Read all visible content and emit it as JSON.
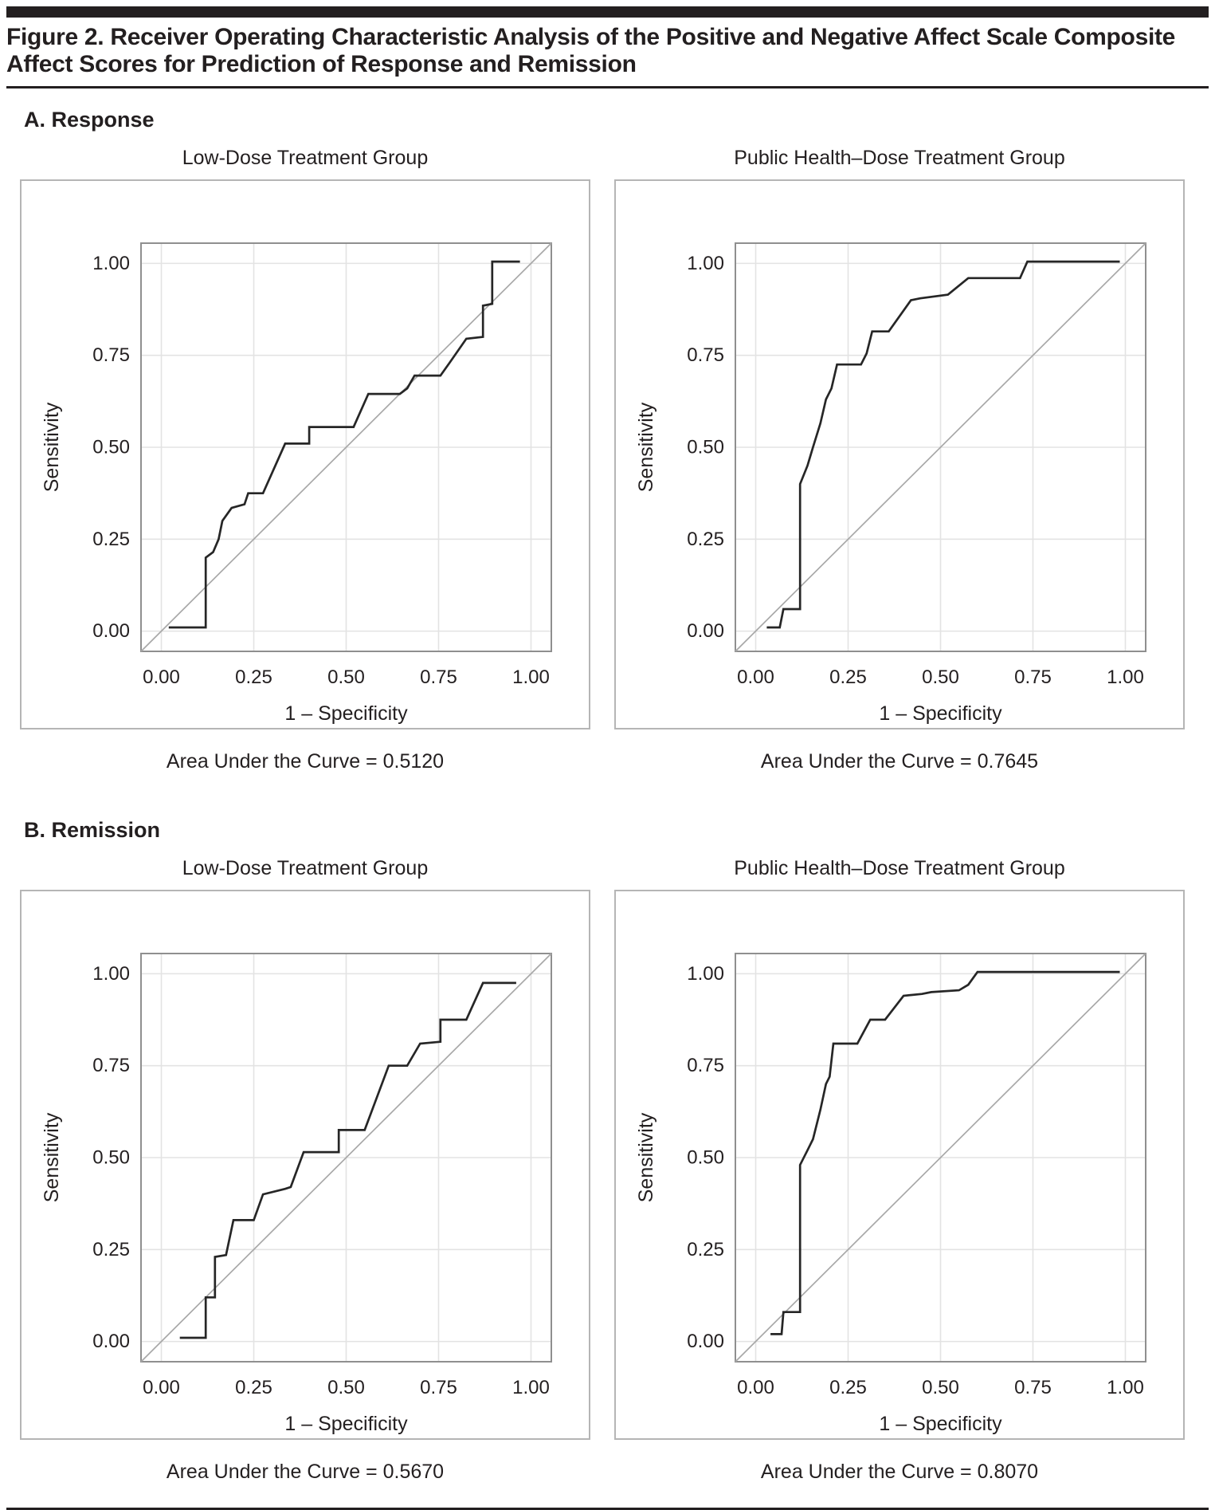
{
  "figure": {
    "title": "Figure 2. Receiver Operating Characteristic Analysis of the Positive and Negative Affect Scale Composite Affect Scores for Prediction of Response and Remission"
  },
  "sections": [
    {
      "label": "A. Response"
    },
    {
      "label": "B. Remission"
    }
  ],
  "colors": {
    "curve": "#262626",
    "diagonal": "#a8a8a8",
    "grid": "#e3e3e3",
    "plot_border": "#8f8f8f",
    "panel_border": "#b5b5b5",
    "text": "#231f20"
  },
  "chart_data": [
    {
      "type": "line",
      "section": "A. Response",
      "title": "Low-Dose Treatment Group",
      "xlabel": "1 – Specificity",
      "ylabel": "Sensitivity",
      "auc_caption": "Area Under the Curve = 0.5120",
      "auc_value": 0.512,
      "xlim": [
        0,
        1
      ],
      "ylim": [
        0,
        1
      ],
      "tick_values": [
        0,
        0.25,
        0.5,
        0.75,
        1
      ],
      "tick_labels": [
        "0.00",
        "0.25",
        "0.50",
        "0.75",
        "1.00"
      ],
      "grid": true,
      "diagonal_reference": true,
      "roc_points": [
        [
          0.02,
          0.01
        ],
        [
          0.12,
          0.01
        ],
        [
          0.12,
          0.2
        ],
        [
          0.14,
          0.215
        ],
        [
          0.155,
          0.25
        ],
        [
          0.165,
          0.3
        ],
        [
          0.19,
          0.335
        ],
        [
          0.225,
          0.345
        ],
        [
          0.235,
          0.375
        ],
        [
          0.275,
          0.375
        ],
        [
          0.335,
          0.51
        ],
        [
          0.4,
          0.51
        ],
        [
          0.4,
          0.555
        ],
        [
          0.52,
          0.555
        ],
        [
          0.56,
          0.645
        ],
        [
          0.645,
          0.645
        ],
        [
          0.665,
          0.66
        ],
        [
          0.685,
          0.695
        ],
        [
          0.755,
          0.695
        ],
        [
          0.78,
          0.73
        ],
        [
          0.825,
          0.795
        ],
        [
          0.87,
          0.8
        ],
        [
          0.87,
          0.885
        ],
        [
          0.895,
          0.89
        ],
        [
          0.895,
          1.005
        ],
        [
          0.97,
          1.005
        ]
      ]
    },
    {
      "type": "line",
      "section": "A. Response",
      "title": "Public Health–Dose Treatment Group",
      "xlabel": "1 – Specificity",
      "ylabel": "Sensitivity",
      "auc_caption": "Area Under the Curve = 0.7645",
      "auc_value": 0.7645,
      "xlim": [
        0,
        1
      ],
      "ylim": [
        0,
        1
      ],
      "tick_values": [
        0,
        0.25,
        0.5,
        0.75,
        1
      ],
      "tick_labels": [
        "0.00",
        "0.25",
        "0.50",
        "0.75",
        "1.00"
      ],
      "grid": true,
      "diagonal_reference": true,
      "roc_points": [
        [
          0.03,
          0.01
        ],
        [
          0.065,
          0.01
        ],
        [
          0.075,
          0.06
        ],
        [
          0.12,
          0.06
        ],
        [
          0.12,
          0.4
        ],
        [
          0.14,
          0.45
        ],
        [
          0.155,
          0.5
        ],
        [
          0.175,
          0.565
        ],
        [
          0.19,
          0.63
        ],
        [
          0.205,
          0.66
        ],
        [
          0.22,
          0.725
        ],
        [
          0.285,
          0.725
        ],
        [
          0.3,
          0.755
        ],
        [
          0.315,
          0.815
        ],
        [
          0.36,
          0.815
        ],
        [
          0.42,
          0.9
        ],
        [
          0.445,
          0.905
        ],
        [
          0.52,
          0.915
        ],
        [
          0.575,
          0.96
        ],
        [
          0.715,
          0.96
        ],
        [
          0.735,
          1.005
        ],
        [
          0.985,
          1.005
        ]
      ]
    },
    {
      "type": "line",
      "section": "B. Remission",
      "title": "Low-Dose Treatment Group",
      "xlabel": "1 – Specificity",
      "ylabel": "Sensitivity",
      "auc_caption": "Area Under the Curve = 0.5670",
      "auc_value": 0.567,
      "xlim": [
        0,
        1
      ],
      "ylim": [
        0,
        1
      ],
      "tick_values": [
        0,
        0.25,
        0.5,
        0.75,
        1
      ],
      "tick_labels": [
        "0.00",
        "0.25",
        "0.50",
        "0.75",
        "1.00"
      ],
      "grid": true,
      "diagonal_reference": true,
      "roc_points": [
        [
          0.05,
          0.01
        ],
        [
          0.12,
          0.01
        ],
        [
          0.12,
          0.12
        ],
        [
          0.145,
          0.12
        ],
        [
          0.145,
          0.23
        ],
        [
          0.175,
          0.235
        ],
        [
          0.195,
          0.33
        ],
        [
          0.25,
          0.33
        ],
        [
          0.275,
          0.4
        ],
        [
          0.335,
          0.415
        ],
        [
          0.35,
          0.42
        ],
        [
          0.385,
          0.515
        ],
        [
          0.48,
          0.515
        ],
        [
          0.48,
          0.575
        ],
        [
          0.55,
          0.575
        ],
        [
          0.615,
          0.75
        ],
        [
          0.665,
          0.75
        ],
        [
          0.7,
          0.81
        ],
        [
          0.755,
          0.815
        ],
        [
          0.755,
          0.875
        ],
        [
          0.825,
          0.875
        ],
        [
          0.87,
          0.975
        ],
        [
          0.96,
          0.975
        ]
      ]
    },
    {
      "type": "line",
      "section": "B. Remission",
      "title": "Public Health–Dose Treatment Group",
      "xlabel": "1 – Specificity",
      "ylabel": "Sensitivity",
      "auc_caption": "Area Under the Curve = 0.8070",
      "auc_value": 0.807,
      "xlim": [
        0,
        1
      ],
      "ylim": [
        0,
        1
      ],
      "tick_values": [
        0,
        0.25,
        0.5,
        0.75,
        1
      ],
      "tick_labels": [
        "0.00",
        "0.25",
        "0.50",
        "0.75",
        "1.00"
      ],
      "grid": true,
      "diagonal_reference": true,
      "roc_points": [
        [
          0.04,
          0.02
        ],
        [
          0.07,
          0.02
        ],
        [
          0.075,
          0.08
        ],
        [
          0.12,
          0.08
        ],
        [
          0.12,
          0.48
        ],
        [
          0.14,
          0.52
        ],
        [
          0.155,
          0.55
        ],
        [
          0.175,
          0.63
        ],
        [
          0.19,
          0.7
        ],
        [
          0.2,
          0.72
        ],
        [
          0.21,
          0.81
        ],
        [
          0.275,
          0.81
        ],
        [
          0.31,
          0.875
        ],
        [
          0.35,
          0.875
        ],
        [
          0.4,
          0.94
        ],
        [
          0.45,
          0.945
        ],
        [
          0.475,
          0.95
        ],
        [
          0.55,
          0.955
        ],
        [
          0.575,
          0.97
        ],
        [
          0.6,
          1.005
        ],
        [
          0.985,
          1.005
        ]
      ]
    }
  ]
}
